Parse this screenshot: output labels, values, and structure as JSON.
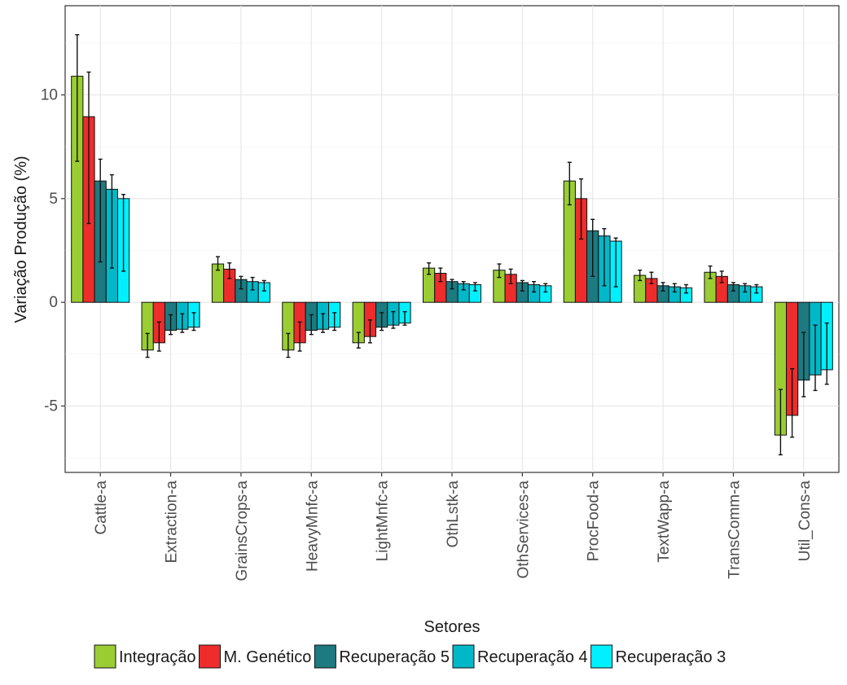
{
  "chart_data": {
    "type": "bar",
    "xlabel": "Setores",
    "ylabel": "Variação Produção (%)",
    "ylim": [
      -8.2,
      14.3
    ],
    "yticks": [
      -5,
      0,
      5,
      10
    ],
    "grid": true,
    "legend_position": "bottom",
    "categories": [
      "Cattle-a",
      "Extraction-a",
      "GrainsCrops-a",
      "HeavyMnfc-a",
      "LightMnfc-a",
      "OthLstk-a",
      "OthServices-a",
      "ProcFood-a",
      "TextWapp-a",
      "TransComm-a",
      "Util_Cons-a"
    ],
    "series": [
      {
        "name": "Integração",
        "color": "#9acd32",
        "values": [
          10.9,
          -2.3,
          1.85,
          -2.3,
          -1.95,
          1.65,
          1.55,
          5.85,
          1.3,
          1.45,
          -6.4
        ],
        "err_low": [
          6.8,
          -2.65,
          1.55,
          -2.65,
          -2.2,
          1.35,
          1.2,
          4.7,
          1.05,
          1.15,
          -7.35
        ],
        "err_high": [
          12.9,
          -1.5,
          2.2,
          -1.5,
          -1.45,
          1.9,
          1.85,
          6.75,
          1.55,
          1.75,
          -4.2
        ]
      },
      {
        "name": "M. Genético",
        "color": "#ee2c2c",
        "values": [
          8.95,
          -1.95,
          1.6,
          -1.95,
          -1.65,
          1.4,
          1.35,
          5.0,
          1.15,
          1.25,
          -5.45
        ],
        "err_low": [
          3.8,
          -2.35,
          1.15,
          -2.35,
          -1.95,
          1.0,
          0.9,
          3.05,
          0.9,
          0.95,
          -6.5
        ],
        "err_high": [
          11.1,
          -0.95,
          1.9,
          -0.95,
          -0.85,
          1.65,
          1.6,
          5.95,
          1.45,
          1.5,
          -3.2
        ]
      },
      {
        "name": "Recuperação 5",
        "color": "#1c7a80",
        "values": [
          5.85,
          -1.35,
          1.1,
          -1.35,
          -1.2,
          1.0,
          0.95,
          3.45,
          0.8,
          0.85,
          -3.75
        ],
        "err_low": [
          1.95,
          -1.55,
          0.65,
          -1.55,
          -1.35,
          0.65,
          0.55,
          1.25,
          0.55,
          0.55,
          -4.55
        ],
        "err_high": [
          6.9,
          -0.6,
          1.25,
          -0.6,
          -0.5,
          1.1,
          1.05,
          4.0,
          0.95,
          0.95,
          -1.45
        ]
      },
      {
        "name": "Recuperação 4",
        "color": "#00b8c8",
        "values": [
          5.45,
          -1.3,
          1.0,
          -1.3,
          -1.1,
          0.9,
          0.85,
          3.2,
          0.75,
          0.8,
          -3.5
        ],
        "err_low": [
          1.65,
          -1.45,
          0.6,
          -1.45,
          -1.25,
          0.6,
          0.5,
          0.8,
          0.5,
          0.5,
          -4.25
        ],
        "err_high": [
          6.15,
          -0.55,
          1.2,
          -0.55,
          -0.45,
          1.0,
          1.0,
          3.55,
          0.9,
          0.9,
          -1.1
        ]
      },
      {
        "name": "Recuperação 3",
        "color": "#00f0ff",
        "values": [
          5.0,
          -1.2,
          0.95,
          -1.2,
          -1.0,
          0.85,
          0.8,
          2.95,
          0.7,
          0.75,
          -3.25
        ],
        "err_low": [
          1.5,
          -1.35,
          0.55,
          -1.35,
          -1.1,
          0.55,
          0.5,
          0.75,
          0.45,
          0.45,
          -3.95
        ],
        "err_high": [
          5.2,
          -0.5,
          1.05,
          -0.5,
          -0.45,
          0.95,
          0.9,
          3.1,
          0.85,
          0.85,
          -1.0
        ]
      }
    ]
  }
}
